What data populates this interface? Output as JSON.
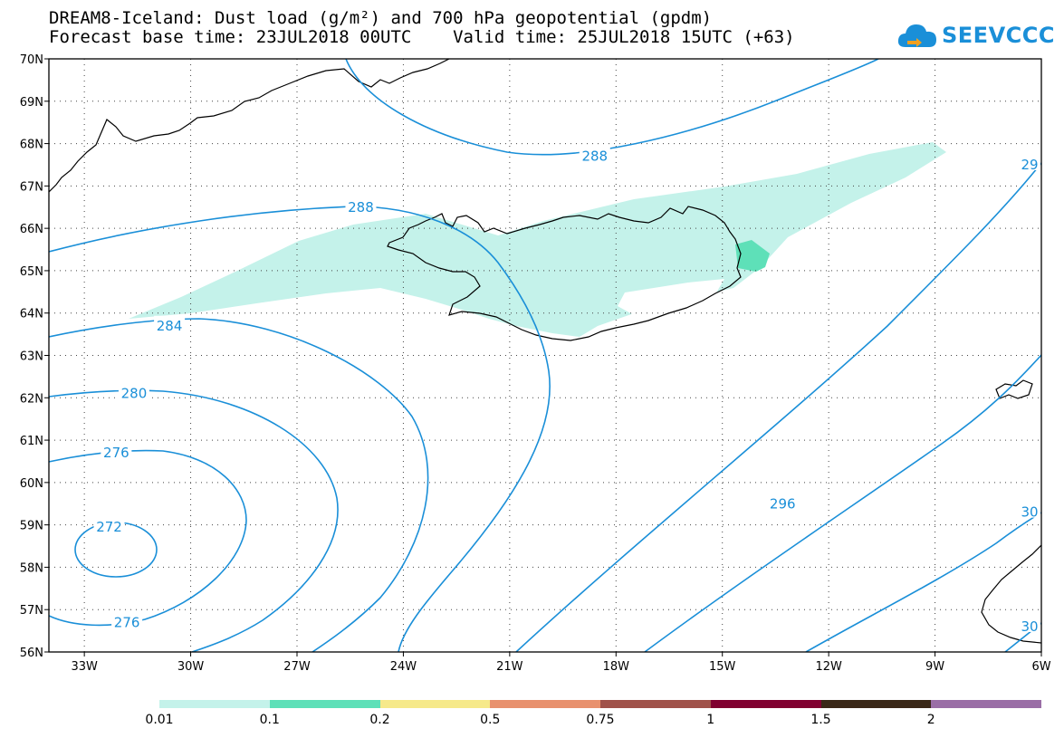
{
  "header": {
    "title_line1": "DREAM8-Iceland: Dust load (g/m²) and 700 hPa geopotential (gpdm)",
    "title_line2": "Forecast base time: 23JUL2018 00UTC    Valid time: 25JUL2018 15UTC (+63)"
  },
  "logo": {
    "text": "SEEVCCC",
    "color": "#1a8fd8",
    "icon": "cloud-icon"
  },
  "map": {
    "lon_range": [
      -34,
      -6
    ],
    "lat_range": [
      56,
      70
    ],
    "lon_ticks": [
      {
        "lon": -33,
        "label": "33W"
      },
      {
        "lon": -30,
        "label": "30W"
      },
      {
        "lon": -27,
        "label": "27W"
      },
      {
        "lon": -24,
        "label": "24W"
      },
      {
        "lon": -21,
        "label": "21W"
      },
      {
        "lon": -18,
        "label": "18W"
      },
      {
        "lon": -15,
        "label": "15W"
      },
      {
        "lon": -12,
        "label": "12W"
      },
      {
        "lon": -9,
        "label": "9W"
      },
      {
        "lon": -6,
        "label": "6W"
      }
    ],
    "lat_ticks": [
      {
        "lat": 70,
        "label": "70N"
      },
      {
        "lat": 69,
        "label": "69N"
      },
      {
        "lat": 68,
        "label": "68N"
      },
      {
        "lat": 67,
        "label": "67N"
      },
      {
        "lat": 66,
        "label": "66N"
      },
      {
        "lat": 65,
        "label": "65N"
      },
      {
        "lat": 64,
        "label": "64N"
      },
      {
        "lat": 63,
        "label": "63N"
      },
      {
        "lat": 62,
        "label": "62N"
      },
      {
        "lat": 61,
        "label": "61N"
      },
      {
        "lat": 60,
        "label": "60N"
      },
      {
        "lat": 59,
        "label": "59N"
      },
      {
        "lat": 58,
        "label": "58N"
      },
      {
        "lat": 57,
        "label": "57N"
      },
      {
        "lat": 56,
        "label": "56N"
      }
    ],
    "contour_color": "#1a8fd8",
    "contour_labels": [
      {
        "text": "288",
        "lon": -18.6,
        "lat": 67.7
      },
      {
        "text": "288",
        "lon": -25.2,
        "lat": 66.5
      },
      {
        "text": "284",
        "lon": -30.6,
        "lat": 63.7
      },
      {
        "text": "280",
        "lon": -31.6,
        "lat": 62.1
      },
      {
        "text": "276",
        "lon": -32.1,
        "lat": 60.7
      },
      {
        "text": "272",
        "lon": -32.3,
        "lat": 58.95
      },
      {
        "text": "276",
        "lon": -31.8,
        "lat": 56.7
      },
      {
        "text": "296",
        "lon": -13.3,
        "lat": 59.5
      },
      {
        "text": "29",
        "lon": -6.3,
        "lat": 67.5
      },
      {
        "text": "30",
        "lon": -6.3,
        "lat": 59.3
      },
      {
        "text": "30",
        "lon": -6.3,
        "lat": 56.6
      }
    ],
    "dust_color_low": "#c4f2ea",
    "dust_color_mid": "#5ee0b8"
  },
  "legend": {
    "colors": [
      "#c4f2ea",
      "#5ee0b8",
      "#f6e98a",
      "#e8916e",
      "#a0524a",
      "#800030",
      "#3a2818",
      "#9a6ea6"
    ],
    "labels": [
      "0.01",
      "0.1",
      "0.2",
      "0.5",
      "0.75",
      "1",
      "1.5",
      "2"
    ]
  }
}
